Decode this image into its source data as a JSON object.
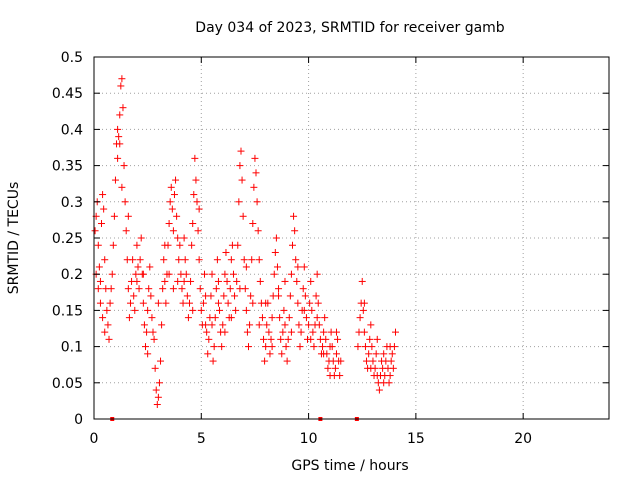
{
  "chart_data": {
    "type": "scatter",
    "title": "Day 034 of 2023, SRMTID for receiver gamb",
    "xlabel": "GPS time / hours",
    "ylabel": "SRMTID / TECUs",
    "xlim": [
      0,
      24
    ],
    "ylim": [
      0,
      0.5
    ],
    "xticks": [
      0,
      5,
      10,
      15,
      20
    ],
    "xtick_labels": [
      "0",
      "5",
      "10",
      "15",
      "20"
    ],
    "yticks": [
      0,
      0.05,
      0.1,
      0.15,
      0.2,
      0.25,
      0.3,
      0.35,
      0.4,
      0.45,
      0.5
    ],
    "ytick_labels": [
      "0",
      "0.05",
      "0.1",
      "0.15",
      "0.2",
      "0.25",
      "0.3",
      "0.35",
      "0.4",
      "0.45",
      "0.5"
    ],
    "grid": true,
    "marker": "+",
    "marker_color": "#ff0000",
    "series": [
      {
        "name": "SRMTID",
        "points": [
          [
            0.05,
            0.26
          ],
          [
            0.1,
            0.28
          ],
          [
            0.15,
            0.3
          ],
          [
            0.2,
            0.24
          ],
          [
            0.25,
            0.21
          ],
          [
            0.3,
            0.19
          ],
          [
            0.35,
            0.27
          ],
          [
            0.4,
            0.31
          ],
          [
            0.45,
            0.29
          ],
          [
            0.5,
            0.22
          ],
          [
            0.55,
            0.18
          ],
          [
            0.6,
            0.15
          ],
          [
            0.65,
            0.13
          ],
          [
            0.7,
            0.11
          ],
          [
            0.75,
            0.16
          ],
          [
            0.8,
            0.18
          ],
          [
            0.85,
            0.2
          ],
          [
            0.9,
            0.24
          ],
          [
            0.95,
            0.28
          ],
          [
            1.0,
            0.33
          ],
          [
            1.05,
            0.38
          ],
          [
            1.1,
            0.4
          ],
          [
            1.15,
            0.39
          ],
          [
            1.2,
            0.42
          ],
          [
            1.25,
            0.46
          ],
          [
            1.3,
            0.47
          ],
          [
            1.35,
            0.43
          ],
          [
            1.4,
            0.35
          ],
          [
            1.45,
            0.3
          ],
          [
            1.5,
            0.26
          ],
          [
            1.55,
            0.22
          ],
          [
            1.6,
            0.18
          ],
          [
            1.65,
            0.14
          ],
          [
            1.7,
            0.16
          ],
          [
            1.75,
            0.19
          ],
          [
            1.8,
            0.22
          ],
          [
            1.85,
            0.17
          ],
          [
            1.9,
            0.15
          ],
          [
            1.95,
            0.2
          ],
          [
            2.0,
            0.24
          ],
          [
            2.05,
            0.21
          ],
          [
            2.1,
            0.18
          ],
          [
            2.15,
            0.22
          ],
          [
            2.2,
            0.25
          ],
          [
            2.25,
            0.2
          ],
          [
            2.3,
            0.16
          ],
          [
            2.35,
            0.13
          ],
          [
            2.4,
            0.1
          ],
          [
            2.45,
            0.12
          ],
          [
            2.5,
            0.15
          ],
          [
            2.55,
            0.18
          ],
          [
            2.6,
            0.21
          ],
          [
            2.65,
            0.17
          ],
          [
            2.7,
            0.14
          ],
          [
            2.75,
            0.12
          ],
          [
            2.8,
            0.11
          ],
          [
            2.85,
            0.07
          ],
          [
            2.9,
            0.04
          ],
          [
            2.95,
            0.02
          ],
          [
            3.0,
            0.03
          ],
          [
            3.05,
            0.05
          ],
          [
            3.1,
            0.08
          ],
          [
            3.15,
            0.13
          ],
          [
            3.2,
            0.18
          ],
          [
            3.25,
            0.22
          ],
          [
            3.3,
            0.19
          ],
          [
            3.35,
            0.16
          ],
          [
            3.4,
            0.2
          ],
          [
            3.45,
            0.24
          ],
          [
            3.5,
            0.27
          ],
          [
            3.55,
            0.3
          ],
          [
            3.6,
            0.32
          ],
          [
            3.65,
            0.29
          ],
          [
            3.7,
            0.26
          ],
          [
            3.75,
            0.31
          ],
          [
            3.8,
            0.33
          ],
          [
            3.85,
            0.28
          ],
          [
            3.9,
            0.25
          ],
          [
            3.95,
            0.22
          ],
          [
            4.0,
            0.24
          ],
          [
            4.05,
            0.2
          ],
          [
            4.1,
            0.18
          ],
          [
            4.15,
            0.16
          ],
          [
            4.2,
            0.19
          ],
          [
            4.25,
            0.22
          ],
          [
            4.3,
            0.2
          ],
          [
            4.35,
            0.17
          ],
          [
            4.4,
            0.14
          ],
          [
            4.45,
            0.16
          ],
          [
            4.5,
            0.19
          ],
          [
            4.55,
            0.24
          ],
          [
            4.6,
            0.27
          ],
          [
            4.65,
            0.31
          ],
          [
            4.7,
            0.36
          ],
          [
            4.75,
            0.33
          ],
          [
            4.8,
            0.3
          ],
          [
            4.85,
            0.26
          ],
          [
            4.9,
            0.22
          ],
          [
            4.95,
            0.18
          ],
          [
            5.0,
            0.15
          ],
          [
            5.05,
            0.13
          ],
          [
            5.1,
            0.16
          ],
          [
            5.15,
            0.2
          ],
          [
            5.2,
            0.17
          ],
          [
            5.25,
            0.12
          ],
          [
            5.3,
            0.09
          ],
          [
            5.35,
            0.11
          ],
          [
            5.4,
            0.14
          ],
          [
            5.45,
            0.17
          ],
          [
            5.5,
            0.13
          ],
          [
            5.55,
            0.08
          ],
          [
            5.6,
            0.1
          ],
          [
            5.65,
            0.14
          ],
          [
            5.7,
            0.18
          ],
          [
            5.75,
            0.22
          ],
          [
            5.8,
            0.19
          ],
          [
            5.85,
            0.15
          ],
          [
            5.9,
            0.12
          ],
          [
            5.95,
            0.1
          ],
          [
            6.0,
            0.13
          ],
          [
            6.05,
            0.17
          ],
          [
            6.1,
            0.2
          ],
          [
            6.15,
            0.23
          ],
          [
            6.2,
            0.19
          ],
          [
            6.25,
            0.16
          ],
          [
            6.3,
            0.14
          ],
          [
            6.35,
            0.18
          ],
          [
            6.4,
            0.22
          ],
          [
            6.45,
            0.24
          ],
          [
            6.5,
            0.2
          ],
          [
            6.55,
            0.17
          ],
          [
            6.6,
            0.15
          ],
          [
            6.65,
            0.19
          ],
          [
            6.7,
            0.24
          ],
          [
            6.75,
            0.3
          ],
          [
            6.8,
            0.35
          ],
          [
            6.85,
            0.37
          ],
          [
            6.9,
            0.33
          ],
          [
            6.95,
            0.28
          ],
          [
            7.0,
            0.22
          ],
          [
            7.05,
            0.18
          ],
          [
            7.1,
            0.15
          ],
          [
            7.15,
            0.12
          ],
          [
            7.2,
            0.1
          ],
          [
            7.25,
            0.13
          ],
          [
            7.3,
            0.17
          ],
          [
            7.35,
            0.22
          ],
          [
            7.4,
            0.27
          ],
          [
            7.45,
            0.32
          ],
          [
            7.5,
            0.36
          ],
          [
            7.55,
            0.34
          ],
          [
            7.6,
            0.3
          ],
          [
            7.65,
            0.26
          ],
          [
            7.7,
            0.22
          ],
          [
            7.75,
            0.19
          ],
          [
            7.8,
            0.16
          ],
          [
            7.85,
            0.14
          ],
          [
            7.9,
            0.11
          ],
          [
            7.95,
            0.08
          ],
          [
            8.0,
            0.1
          ],
          [
            8.05,
            0.13
          ],
          [
            8.1,
            0.16
          ],
          [
            8.15,
            0.12
          ],
          [
            8.2,
            0.09
          ],
          [
            8.25,
            0.11
          ],
          [
            8.3,
            0.14
          ],
          [
            8.35,
            0.17
          ],
          [
            8.4,
            0.2
          ],
          [
            8.45,
            0.23
          ],
          [
            8.5,
            0.25
          ],
          [
            8.55,
            0.21
          ],
          [
            8.6,
            0.17
          ],
          [
            8.65,
            0.14
          ],
          [
            8.7,
            0.11
          ],
          [
            8.75,
            0.09
          ],
          [
            8.8,
            0.12
          ],
          [
            8.85,
            0.15
          ],
          [
            8.9,
            0.13
          ],
          [
            8.95,
            0.1
          ],
          [
            9.0,
            0.08
          ],
          [
            9.05,
            0.11
          ],
          [
            9.1,
            0.14
          ],
          [
            9.15,
            0.17
          ],
          [
            9.2,
            0.2
          ],
          [
            9.25,
            0.24
          ],
          [
            9.3,
            0.28
          ],
          [
            9.35,
            0.26
          ],
          [
            9.4,
            0.22
          ],
          [
            9.45,
            0.19
          ],
          [
            9.5,
            0.16
          ],
          [
            9.55,
            0.13
          ],
          [
            9.6,
            0.1
          ],
          [
            9.65,
            0.12
          ],
          [
            9.7,
            0.15
          ],
          [
            9.75,
            0.18
          ],
          [
            9.8,
            0.21
          ],
          [
            9.85,
            0.17
          ],
          [
            9.9,
            0.14
          ],
          [
            9.95,
            0.11
          ],
          [
            10.0,
            0.13
          ],
          [
            10.05,
            0.16
          ],
          [
            10.1,
            0.19
          ],
          [
            10.15,
            0.15
          ],
          [
            10.2,
            0.12
          ],
          [
            10.25,
            0.1
          ],
          [
            10.3,
            0.13
          ],
          [
            10.35,
            0.17
          ],
          [
            10.4,
            0.2
          ],
          [
            10.45,
            0.16
          ],
          [
            10.5,
            0.13
          ],
          [
            10.55,
            0.11
          ],
          [
            10.6,
            0.09
          ],
          [
            10.65,
            0.1
          ],
          [
            10.7,
            0.12
          ],
          [
            10.75,
            0.14
          ],
          [
            10.8,
            0.11
          ],
          [
            10.85,
            0.09
          ],
          [
            10.9,
            0.07
          ],
          [
            10.95,
            0.08
          ],
          [
            11.0,
            0.1
          ],
          [
            11.05,
            0.12
          ],
          [
            11.1,
            0.1
          ],
          [
            11.15,
            0.08
          ],
          [
            11.2,
            0.06
          ],
          [
            11.25,
            0.07
          ],
          [
            11.3,
            0.09
          ],
          [
            11.35,
            0.11
          ],
          [
            11.4,
            0.08
          ],
          [
            11.45,
            0.06
          ],
          [
            11.5,
            0.08
          ],
          [
            12.3,
            0.1
          ],
          [
            12.35,
            0.12
          ],
          [
            12.4,
            0.14
          ],
          [
            12.45,
            0.16
          ],
          [
            12.5,
            0.19
          ],
          [
            12.55,
            0.15
          ],
          [
            12.6,
            0.12
          ],
          [
            12.65,
            0.1
          ],
          [
            12.7,
            0.08
          ],
          [
            12.75,
            0.07
          ],
          [
            12.8,
            0.09
          ],
          [
            12.85,
            0.11
          ],
          [
            12.9,
            0.13
          ],
          [
            12.95,
            0.1
          ],
          [
            13.0,
            0.08
          ],
          [
            13.05,
            0.06
          ],
          [
            13.1,
            0.07
          ],
          [
            13.15,
            0.09
          ],
          [
            13.2,
            0.06
          ],
          [
            13.25,
            0.05
          ],
          [
            13.3,
            0.04
          ],
          [
            13.35,
            0.06
          ],
          [
            13.4,
            0.08
          ],
          [
            13.45,
            0.07
          ],
          [
            13.5,
            0.05
          ],
          [
            13.55,
            0.06
          ],
          [
            13.6,
            0.08
          ],
          [
            13.65,
            0.1
          ],
          [
            13.7,
            0.07
          ],
          [
            13.75,
            0.05
          ],
          [
            13.8,
            0.06
          ],
          [
            13.85,
            0.08
          ],
          [
            13.9,
            0.09
          ],
          [
            13.95,
            0.07
          ],
          [
            14.0,
            0.1
          ],
          [
            14.05,
            0.12
          ],
          [
            0.1,
            0.2
          ],
          [
            0.2,
            0.18
          ],
          [
            0.3,
            0.16
          ],
          [
            0.4,
            0.14
          ],
          [
            0.5,
            0.12
          ],
          [
            1.1,
            0.36
          ],
          [
            1.2,
            0.38
          ],
          [
            1.3,
            0.32
          ],
          [
            1.6,
            0.28
          ],
          [
            2.0,
            0.19
          ],
          [
            2.3,
            0.2
          ],
          [
            2.5,
            0.09
          ],
          [
            3.0,
            0.16
          ],
          [
            3.3,
            0.24
          ],
          [
            3.5,
            0.2
          ],
          [
            3.7,
            0.18
          ],
          [
            3.9,
            0.19
          ],
          [
            4.2,
            0.25
          ],
          [
            4.6,
            0.15
          ],
          [
            4.9,
            0.29
          ],
          [
            5.2,
            0.13
          ],
          [
            5.5,
            0.2
          ],
          [
            5.8,
            0.16
          ],
          [
            6.1,
            0.12
          ],
          [
            6.4,
            0.14
          ],
          [
            6.8,
            0.18
          ],
          [
            7.1,
            0.21
          ],
          [
            7.4,
            0.16
          ],
          [
            7.7,
            0.13
          ],
          [
            8.0,
            0.16
          ],
          [
            8.3,
            0.1
          ],
          [
            8.6,
            0.18
          ],
          [
            8.9,
            0.19
          ],
          [
            9.2,
            0.12
          ],
          [
            9.5,
            0.21
          ],
          [
            9.8,
            0.15
          ],
          [
            10.1,
            0.11
          ],
          [
            10.4,
            0.14
          ],
          [
            10.7,
            0.09
          ],
          [
            11.0,
            0.06
          ],
          [
            11.3,
            0.12
          ],
          [
            12.6,
            0.16
          ],
          [
            12.9,
            0.07
          ],
          [
            13.2,
            0.11
          ],
          [
            13.5,
            0.09
          ],
          [
            13.8,
            0.1
          ]
        ]
      }
    ],
    "baseline_markers": [
      0.85,
      10.55,
      12.25
    ]
  }
}
